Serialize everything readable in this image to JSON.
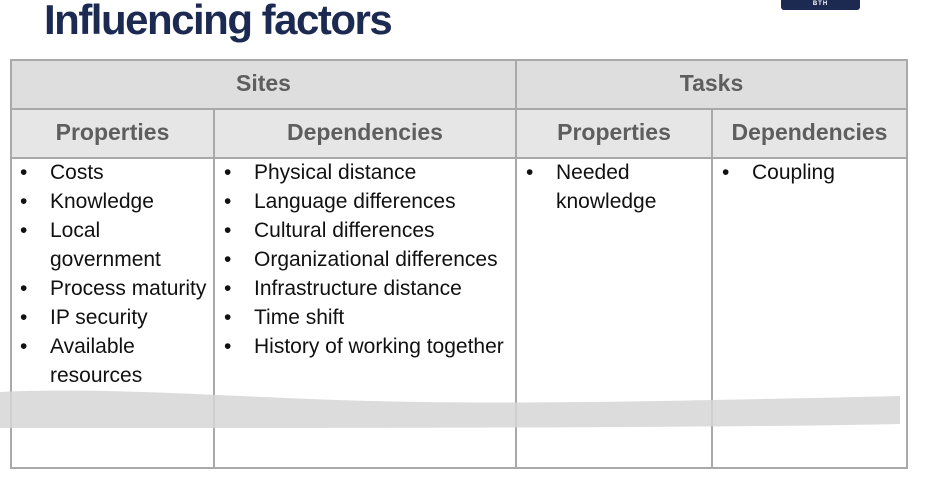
{
  "slide": {
    "title": "Influencing factors",
    "logo_text": "BTH"
  },
  "table": {
    "groups": [
      "Sites",
      "Tasks"
    ],
    "subheaders": [
      "Properties",
      "Dependencies",
      "Properties",
      "Dependencies"
    ],
    "sites_properties": [
      "Costs",
      "Knowledge",
      "Local government",
      "Process maturity",
      "IP security",
      "Available resources"
    ],
    "sites_dependencies": [
      "Physical distance",
      "Language differences",
      "Cultural differences",
      "Organizational differences",
      "Infrastructure distance",
      "Time shift",
      "History of working together"
    ],
    "tasks_properties": [
      "Needed knowledge"
    ],
    "tasks_dependencies": [
      "Coupling"
    ]
  }
}
